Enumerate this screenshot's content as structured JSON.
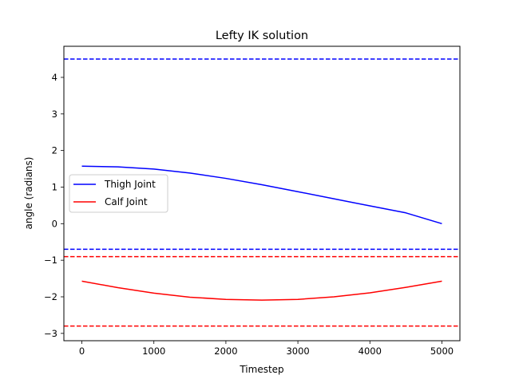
{
  "chart_data": {
    "type": "line",
    "title": "Lefty IK solution",
    "xlabel": "Timestep",
    "ylabel": "angle (radians)",
    "xlim": [
      -250,
      5250
    ],
    "ylim": [
      -3.2,
      4.85
    ],
    "xticks": [
      0,
      1000,
      2000,
      3000,
      4000,
      5000
    ],
    "yticks": [
      -3,
      -2,
      -1,
      0,
      1,
      2,
      3,
      4
    ],
    "grid": false,
    "legend_position": "center-left",
    "series": [
      {
        "name": "Thigh Joint",
        "color": "#0000ff",
        "x": [
          0,
          500,
          1000,
          1500,
          2000,
          2500,
          3000,
          3500,
          4000,
          4500,
          5000
        ],
        "values": [
          1.571,
          1.553,
          1.492,
          1.385,
          1.238,
          1.065,
          0.875,
          0.68,
          0.486,
          0.295,
          0.0
        ]
      },
      {
        "name": "Calf Joint",
        "color": "#ff0000",
        "x": [
          0,
          500,
          1000,
          1500,
          2000,
          2500,
          3000,
          3500,
          4000,
          4500,
          5000
        ],
        "values": [
          -1.571,
          -1.75,
          -1.9,
          -2.01,
          -2.07,
          -2.09,
          -2.07,
          -2.0,
          -1.89,
          -1.74,
          -1.571
        ]
      }
    ],
    "reference_lines": [
      {
        "y": 4.5,
        "color": "#0000ff",
        "style": "dashed"
      },
      {
        "y": -0.7,
        "color": "#0000ff",
        "style": "dashed"
      },
      {
        "y": -0.9,
        "color": "#ff0000",
        "style": "dashed"
      },
      {
        "y": -2.8,
        "color": "#ff0000",
        "style": "dashed"
      }
    ]
  }
}
